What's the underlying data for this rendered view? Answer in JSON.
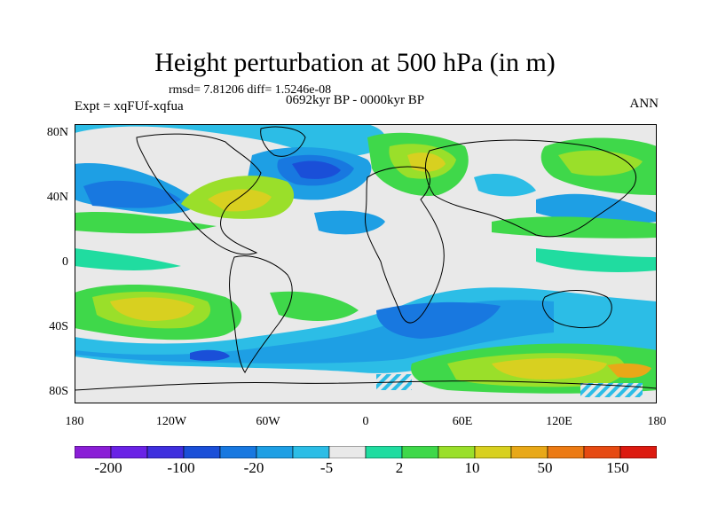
{
  "title": "Height perturbation at 500 hPa (in m)",
  "stats": "rmsd= 7.81206 diff= 1.5246e-08",
  "experiment": "Expt = xqFUf-xqfua",
  "period": "0692kyr BP - 0000kyr BP",
  "season": "ANN",
  "lat_labels": [
    "80N",
    "40N",
    "0",
    "40S",
    "80S"
  ],
  "lon_labels": [
    "180",
    "120W",
    "60W",
    "0",
    "60E",
    "120E",
    "180"
  ],
  "colorbar": {
    "labels": [
      "-200",
      "-100",
      "-20",
      "-5",
      "2",
      "10",
      "50",
      "150"
    ],
    "colors": [
      "#8a1ed6",
      "#6a22e6",
      "#3f2fde",
      "#1a4fd8",
      "#1878e0",
      "#1e9fe4",
      "#2cbde6",
      "#e9e9e9",
      "#20dca0",
      "#3fd84a",
      "#9adf2a",
      "#d8d020",
      "#e8a818",
      "#ec7a14",
      "#e64a12",
      "#dc1a10"
    ]
  },
  "map_colors": {
    "neutral": "#e9e9e9",
    "coastline": "#000000"
  }
}
